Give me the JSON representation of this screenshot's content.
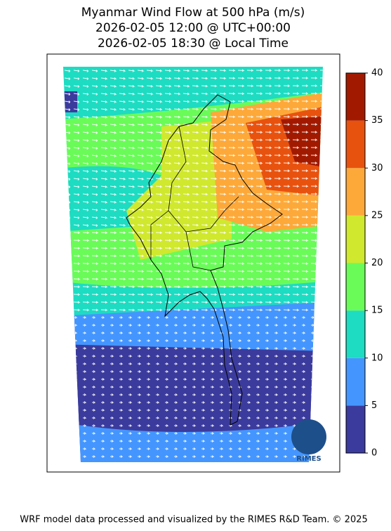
{
  "title": [
    "Myanmar Wind Flow at 500 hPa (m/s)",
    "2026-02-05 12:00 @ UTC+00:00",
    "2026-02-05 18:30 @ Local Time"
  ],
  "colorbar": {
    "lim": [
      0,
      40
    ],
    "ticks": [
      0,
      5,
      10,
      15,
      20,
      25,
      30,
      35,
      40
    ],
    "bins": [
      0,
      5,
      10,
      15,
      20,
      25,
      30,
      35,
      40
    ],
    "colors": [
      "#3b3b9d",
      "#4496fe",
      "#1ddcc2",
      "#6afb59",
      "#d0e82e",
      "#fda93a",
      "#e8520f",
      "#a11a00"
    ]
  },
  "logo": "RIMES",
  "footer": "WRF model data processed and visualized by the RIMES R&D Team. © 2025"
}
